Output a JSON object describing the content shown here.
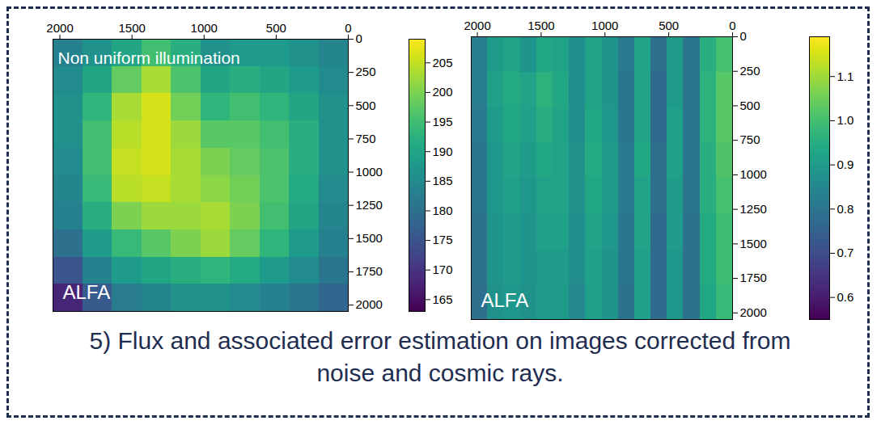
{
  "chart_data": [
    {
      "type": "heatmap",
      "title": "Non uniform illumination",
      "annotations": [
        "ALFA"
      ],
      "color": "viridis",
      "xlim": [
        2048,
        0
      ],
      "xticks": [
        2000,
        1500,
        1000,
        500,
        0
      ],
      "ylim": [
        2048,
        0
      ],
      "yticks": [
        0,
        250,
        500,
        750,
        1000,
        1250,
        1500,
        1750,
        2000
      ],
      "cells": [
        [
          183,
          186,
          190,
          195,
          192,
          186,
          188,
          188,
          186,
          184
        ],
        [
          185,
          190,
          198,
          203,
          196,
          190,
          192,
          190,
          188,
          185
        ],
        [
          186,
          193,
          203,
          206,
          199,
          193,
          195,
          193,
          190,
          186
        ],
        [
          186,
          195,
          204,
          206,
          202,
          197,
          197,
          195,
          192,
          186
        ],
        [
          185,
          195,
          205,
          206,
          203,
          200,
          198,
          196,
          192,
          186
        ],
        [
          184,
          194,
          204,
          205,
          203,
          201,
          199,
          196,
          191,
          185
        ],
        [
          183,
          192,
          200,
          202,
          202,
          203,
          200,
          195,
          190,
          184
        ],
        [
          180,
          188,
          194,
          197,
          200,
          202,
          198,
          193,
          188,
          183
        ],
        [
          175,
          183,
          188,
          190,
          192,
          193,
          191,
          188,
          185,
          181
        ],
        [
          168,
          176,
          182,
          184,
          186,
          186,
          185,
          183,
          181,
          178
        ]
      ],
      "colorbar": {
        "range": [
          163,
          209
        ],
        "ticks": [
          165,
          170,
          175,
          180,
          185,
          190,
          195,
          200,
          205
        ]
      }
    },
    {
      "type": "heatmap",
      "annotations": [
        "ALFA"
      ],
      "color": "viridis",
      "xlim": [
        2048,
        0
      ],
      "xticks": [
        2000,
        1500,
        1000,
        500,
        0
      ],
      "ylim": [
        2048,
        0
      ],
      "yticks": [
        0,
        250,
        500,
        750,
        1000,
        1250,
        1500,
        1750,
        2000
      ],
      "cells": [
        [
          0.82,
          0.9,
          0.92,
          0.88,
          0.93,
          0.92,
          0.86,
          0.92,
          0.88,
          0.81,
          0.92,
          0.78,
          0.9,
          0.8,
          0.95,
          1.0
        ],
        [
          0.82,
          0.91,
          0.94,
          0.92,
          0.96,
          0.93,
          0.86,
          0.92,
          0.88,
          0.8,
          0.92,
          0.77,
          0.9,
          0.8,
          0.96,
          1.02
        ],
        [
          0.81,
          0.9,
          0.93,
          0.91,
          0.95,
          0.92,
          0.86,
          0.93,
          0.89,
          0.8,
          0.92,
          0.77,
          0.91,
          0.8,
          0.96,
          1.02
        ],
        [
          0.8,
          0.89,
          0.92,
          0.9,
          0.93,
          0.92,
          0.87,
          0.94,
          0.9,
          0.81,
          0.93,
          0.78,
          0.91,
          0.8,
          0.95,
          1.01
        ],
        [
          0.8,
          0.89,
          0.91,
          0.89,
          0.92,
          0.92,
          0.87,
          0.93,
          0.9,
          0.81,
          0.92,
          0.78,
          0.9,
          0.8,
          0.95,
          1.0
        ],
        [
          0.79,
          0.88,
          0.9,
          0.88,
          0.91,
          0.91,
          0.86,
          0.92,
          0.89,
          0.8,
          0.92,
          0.77,
          0.9,
          0.79,
          0.94,
          0.99
        ],
        [
          0.79,
          0.88,
          0.9,
          0.88,
          0.9,
          0.9,
          0.86,
          0.91,
          0.88,
          0.8,
          0.91,
          0.77,
          0.89,
          0.79,
          0.94,
          0.99
        ],
        [
          0.78,
          0.87,
          0.89,
          0.87,
          0.9,
          0.9,
          0.85,
          0.91,
          0.88,
          0.79,
          0.91,
          0.77,
          0.89,
          0.79,
          0.93,
          0.98
        ]
      ],
      "colorbar": {
        "range": [
          0.55,
          1.19
        ],
        "ticks": [
          0.6,
          0.7,
          0.8,
          0.9,
          {
            "value": 1,
            "label": "1.0"
          },
          1.1
        ]
      }
    }
  ],
  "caption": "5) Flux and associated error estimation on images corrected from noise and cosmic rays."
}
